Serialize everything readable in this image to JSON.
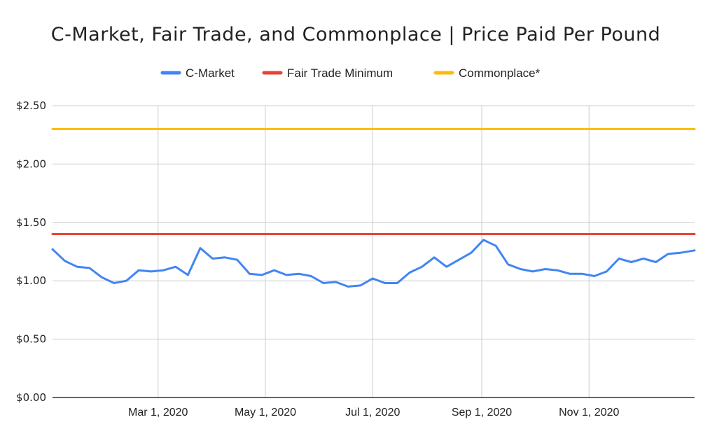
{
  "chart_data": {
    "type": "line",
    "title": "C-Market, Fair Trade, and Commonplace | Price Paid Per Pound",
    "xlabel": "",
    "ylabel": "",
    "ylim": [
      0,
      2.5
    ],
    "y_ticks": [
      "$0.00",
      "$0.50",
      "$1.00",
      "$1.50",
      "$2.00",
      "$2.50"
    ],
    "x_range": [
      "2020-01-01",
      "2020-12-31"
    ],
    "x_ticks": [
      "Mar 1, 2020",
      "May 1, 2020",
      "Jul 1, 2020",
      "Sep 1, 2020",
      "Nov 1, 2020"
    ],
    "legend_position": "top",
    "grid": true,
    "series": [
      {
        "name": "C-Market",
        "color": "#4285F4",
        "x": [
          "2020-01-01",
          "2020-01-08",
          "2020-01-15",
          "2020-01-22",
          "2020-01-29",
          "2020-02-05",
          "2020-02-12",
          "2020-02-19",
          "2020-02-26",
          "2020-03-04",
          "2020-03-11",
          "2020-03-18",
          "2020-03-25",
          "2020-04-01",
          "2020-04-08",
          "2020-04-15",
          "2020-04-22",
          "2020-04-29",
          "2020-05-06",
          "2020-05-13",
          "2020-05-20",
          "2020-05-27",
          "2020-06-03",
          "2020-06-10",
          "2020-06-17",
          "2020-06-24",
          "2020-07-01",
          "2020-07-08",
          "2020-07-15",
          "2020-07-22",
          "2020-07-29",
          "2020-08-05",
          "2020-08-12",
          "2020-08-19",
          "2020-08-26",
          "2020-09-02",
          "2020-09-09",
          "2020-09-16",
          "2020-09-23",
          "2020-09-30",
          "2020-10-07",
          "2020-10-14",
          "2020-10-21",
          "2020-10-28",
          "2020-11-04",
          "2020-11-11",
          "2020-11-18",
          "2020-11-25",
          "2020-12-02",
          "2020-12-09",
          "2020-12-16",
          "2020-12-23",
          "2020-12-31"
        ],
        "values": [
          1.27,
          1.17,
          1.12,
          1.11,
          1.03,
          0.98,
          1.0,
          1.09,
          1.08,
          1.09,
          1.12,
          1.05,
          1.28,
          1.19,
          1.2,
          1.18,
          1.06,
          1.05,
          1.09,
          1.05,
          1.06,
          1.04,
          0.98,
          0.99,
          0.95,
          0.96,
          1.02,
          0.98,
          0.98,
          1.07,
          1.12,
          1.2,
          1.12,
          1.18,
          1.24,
          1.35,
          1.3,
          1.14,
          1.1,
          1.08,
          1.1,
          1.09,
          1.06,
          1.06,
          1.04,
          1.08,
          1.19,
          1.16,
          1.19,
          1.16,
          1.23,
          1.24,
          1.26
        ]
      },
      {
        "name": "Fair Trade Minimum",
        "color": "#EA4335",
        "x": [
          "2020-01-01",
          "2020-12-31"
        ],
        "values": [
          1.4,
          1.4
        ]
      },
      {
        "name": "Commonplace*",
        "color": "#FBBC04",
        "x": [
          "2020-01-01",
          "2020-12-31"
        ],
        "values": [
          2.3,
          2.3
        ]
      }
    ]
  }
}
